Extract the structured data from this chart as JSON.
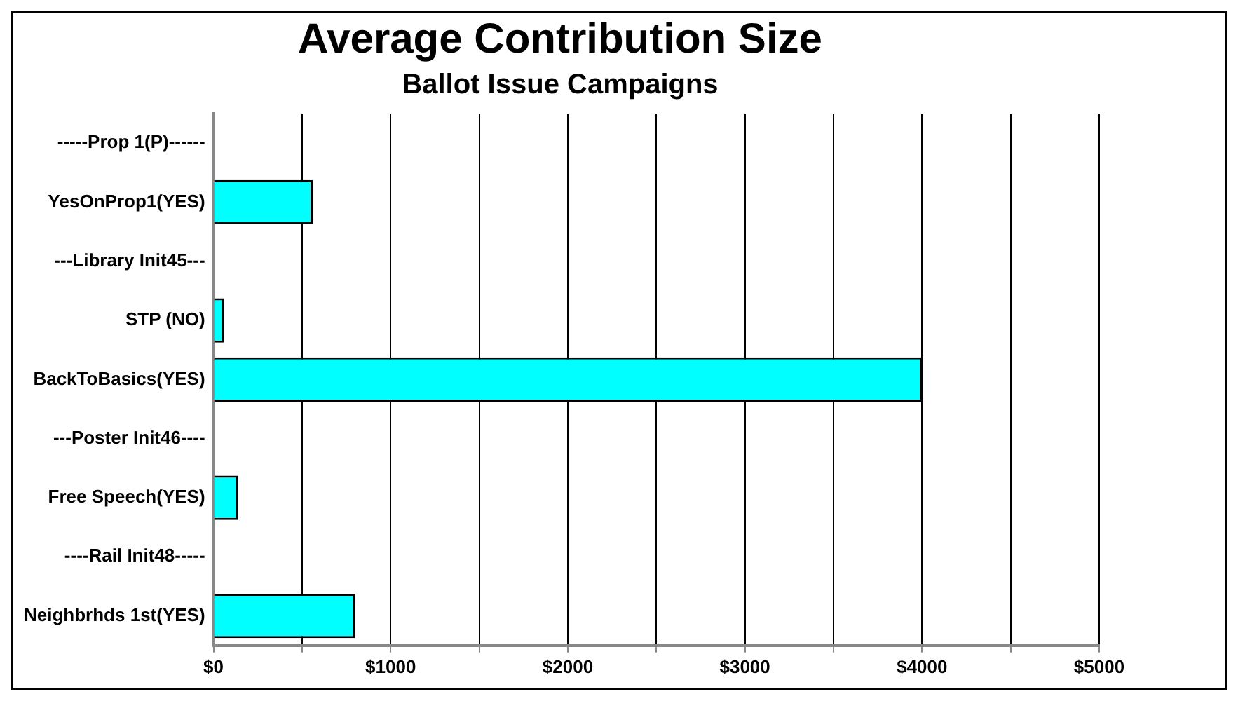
{
  "chart_data": {
    "type": "bar",
    "orientation": "horizontal",
    "title": "Average Contribution Size",
    "subtitle": "Ballot Issue Campaigns",
    "categories": [
      "-----Prop 1(P)------",
      "YesOnProp1(YES)",
      "---Library Init45---",
      "STP (NO)",
      "BackToBasics(YES)",
      "---Poster Init46----",
      "Free Speech(YES)",
      "----Rail Init48-----",
      "Neighbrhds 1st(YES)"
    ],
    "values": [
      null,
      560,
      null,
      60,
      4000,
      null,
      140,
      null,
      800
    ],
    "color": "#00ffff",
    "xlim": [
      0,
      5000
    ],
    "xticks": [
      {
        "value": 0,
        "label": "$0"
      },
      {
        "value": 500,
        "label": null
      },
      {
        "value": 1000,
        "label": "$1000"
      },
      {
        "value": 1500,
        "label": null
      },
      {
        "value": 2000,
        "label": "$2000"
      },
      {
        "value": 2500,
        "label": null
      },
      {
        "value": 3000,
        "label": "$3000"
      },
      {
        "value": 3500,
        "label": null
      },
      {
        "value": 4000,
        "label": "$4000"
      },
      {
        "value": 4500,
        "label": null
      },
      {
        "value": 5000,
        "label": "$5000"
      }
    ],
    "grid": "x",
    "legend": false
  }
}
